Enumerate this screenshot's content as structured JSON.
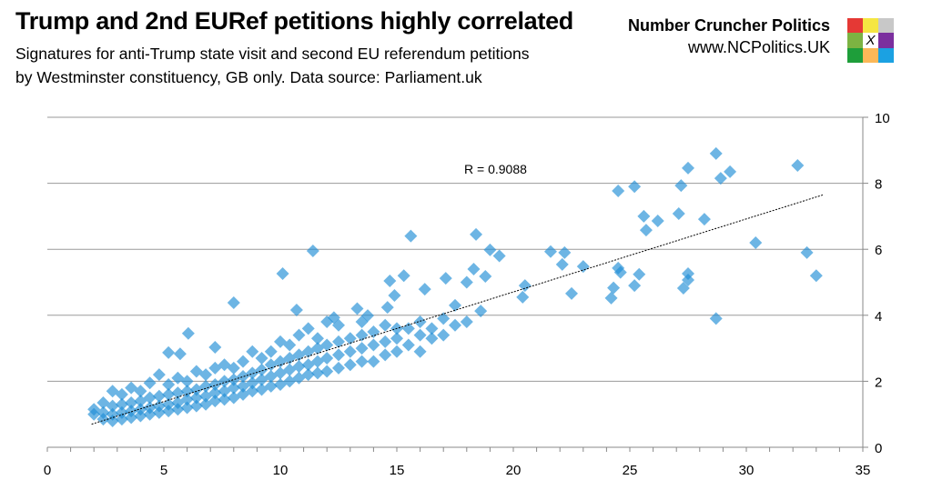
{
  "header": {
    "title": "Trump and 2nd EURef petitions highly correlated",
    "subtitle_line1": "Signatures for anti-Trump state visit and second EU referendum petitions",
    "subtitle_line2": "by Westminster constituency, GB only. Data source: Parliament.uk",
    "brand": "Number Cruncher Politics",
    "url": "www.NCPolitics.UK",
    "logo_colors": [
      "#e53935",
      "#f5e642",
      "#c8c8c8",
      "#7cb342",
      "#ffffff",
      "#7b2f9e",
      "#1e9e3a",
      "#fbb858",
      "#1ba1e2"
    ],
    "logo_mark": "X"
  },
  "chart_data": {
    "type": "scatter",
    "title": "",
    "xlabel": "",
    "ylabel": "",
    "xlim": [
      0,
      35
    ],
    "ylim": [
      0,
      10
    ],
    "x_ticks": [
      "0",
      "5",
      "10",
      "15",
      "20",
      "25",
      "30",
      "35"
    ],
    "y_ticks": [
      "0",
      "2",
      "4",
      "6",
      "8",
      "10"
    ],
    "y_axis_side": "right",
    "grid": "horizontal",
    "marker": "diamond",
    "color": "#1f8dd6",
    "annotation": "R = 0.9088",
    "trendline": {
      "x": [
        1.9,
        33.3
      ],
      "y": [
        0.7,
        7.65
      ],
      "style": "dotted",
      "color": "#000000"
    },
    "points": [
      [
        2.0,
        1.15
      ],
      [
        2.0,
        1.0
      ],
      [
        2.4,
        0.85
      ],
      [
        2.4,
        1.05
      ],
      [
        2.4,
        1.35
      ],
      [
        2.8,
        0.8
      ],
      [
        2.8,
        1.0
      ],
      [
        2.8,
        1.25
      ],
      [
        2.8,
        1.7
      ],
      [
        3.2,
        0.85
      ],
      [
        3.2,
        1.05
      ],
      [
        3.2,
        1.3
      ],
      [
        3.2,
        1.6
      ],
      [
        3.6,
        0.9
      ],
      [
        3.6,
        1.1
      ],
      [
        3.6,
        1.35
      ],
      [
        3.6,
        1.8
      ],
      [
        4.0,
        0.95
      ],
      [
        4.0,
        1.15
      ],
      [
        4.0,
        1.4
      ],
      [
        4.0,
        1.7
      ],
      [
        4.4,
        1.0
      ],
      [
        4.4,
        1.2
      ],
      [
        4.4,
        1.5
      ],
      [
        4.4,
        1.95
      ],
      [
        4.8,
        1.05
      ],
      [
        4.8,
        1.25
      ],
      [
        4.8,
        1.55
      ],
      [
        4.8,
        2.2
      ],
      [
        5.2,
        1.1
      ],
      [
        5.2,
        1.3
      ],
      [
        5.2,
        1.6
      ],
      [
        5.2,
        1.9
      ],
      [
        5.6,
        1.15
      ],
      [
        5.6,
        1.35
      ],
      [
        5.6,
        1.65
      ],
      [
        5.6,
        2.1
      ],
      [
        6.0,
        1.2
      ],
      [
        6.0,
        1.45
      ],
      [
        6.0,
        1.7
      ],
      [
        6.0,
        2.0
      ],
      [
        6.4,
        1.25
      ],
      [
        6.4,
        1.5
      ],
      [
        6.4,
        1.75
      ],
      [
        6.4,
        2.3
      ],
      [
        6.8,
        1.3
      ],
      [
        6.8,
        1.55
      ],
      [
        6.8,
        1.85
      ],
      [
        6.8,
        2.2
      ],
      [
        7.2,
        1.4
      ],
      [
        7.2,
        1.65
      ],
      [
        7.2,
        1.9
      ],
      [
        7.2,
        2.4
      ],
      [
        7.6,
        1.45
      ],
      [
        7.6,
        1.7
      ],
      [
        7.6,
        2.0
      ],
      [
        7.6,
        2.5
      ],
      [
        8.0,
        1.5
      ],
      [
        8.0,
        1.8
      ],
      [
        8.0,
        2.05
      ],
      [
        8.0,
        2.4
      ],
      [
        8.4,
        1.6
      ],
      [
        8.4,
        1.85
      ],
      [
        8.4,
        2.15
      ],
      [
        8.4,
        2.6
      ],
      [
        8.8,
        1.7
      ],
      [
        8.8,
        1.95
      ],
      [
        8.8,
        2.25
      ],
      [
        8.8,
        2.9
      ],
      [
        9.2,
        1.75
      ],
      [
        9.2,
        2.05
      ],
      [
        9.2,
        2.35
      ],
      [
        9.2,
        2.7
      ],
      [
        9.6,
        1.85
      ],
      [
        9.6,
        2.15
      ],
      [
        9.6,
        2.5
      ],
      [
        9.6,
        2.9
      ],
      [
        10.0,
        1.9
      ],
      [
        10.0,
        2.25
      ],
      [
        10.0,
        2.6
      ],
      [
        10.0,
        3.2
      ],
      [
        10.4,
        2.0
      ],
      [
        10.4,
        2.35
      ],
      [
        10.4,
        2.7
      ],
      [
        10.4,
        3.1
      ],
      [
        10.8,
        2.1
      ],
      [
        10.8,
        2.45
      ],
      [
        10.8,
        2.8
      ],
      [
        10.8,
        3.4
      ],
      [
        11.2,
        2.2
      ],
      [
        11.2,
        2.5
      ],
      [
        11.2,
        2.9
      ],
      [
        11.2,
        3.6
      ],
      [
        11.6,
        2.25
      ],
      [
        11.6,
        2.6
      ],
      [
        11.6,
        3.0
      ],
      [
        11.6,
        3.3
      ],
      [
        12.0,
        2.3
      ],
      [
        12.0,
        2.7
      ],
      [
        12.0,
        3.1
      ],
      [
        12.0,
        3.8
      ],
      [
        12.5,
        2.4
      ],
      [
        12.5,
        2.8
      ],
      [
        12.5,
        3.2
      ],
      [
        12.5,
        3.7
      ],
      [
        13.0,
        2.5
      ],
      [
        13.0,
        2.9
      ],
      [
        13.0,
        3.3
      ],
      [
        13.5,
        2.6
      ],
      [
        13.5,
        3.0
      ],
      [
        13.5,
        3.4
      ],
      [
        13.5,
        3.8
      ],
      [
        14.0,
        2.6
      ],
      [
        14.0,
        3.1
      ],
      [
        14.0,
        3.5
      ],
      [
        14.5,
        2.8
      ],
      [
        14.5,
        3.2
      ],
      [
        14.5,
        3.7
      ],
      [
        15.0,
        2.9
      ],
      [
        15.0,
        3.3
      ],
      [
        15.0,
        3.6
      ],
      [
        15.5,
        3.1
      ],
      [
        15.5,
        3.6
      ],
      [
        16.0,
        2.9
      ],
      [
        16.0,
        3.4
      ],
      [
        16.0,
        3.8
      ],
      [
        16.5,
        3.3
      ],
      [
        16.5,
        3.6
      ],
      [
        17.0,
        3.4
      ],
      [
        17.0,
        3.9
      ],
      [
        17.5,
        3.7
      ],
      [
        17.5,
        4.3
      ],
      [
        18.0,
        3.8
      ],
      [
        11.4,
        5.95
      ],
      [
        10.1,
        5.26
      ],
      [
        8.0,
        4.38
      ],
      [
        15.6,
        6.4
      ],
      [
        6.05,
        3.45
      ],
      [
        10.7,
        4.16
      ],
      [
        14.7,
        5.04
      ],
      [
        15.3,
        5.2
      ],
      [
        16.2,
        4.79
      ],
      [
        17.1,
        5.12
      ],
      [
        14.9,
        4.6
      ],
      [
        14.6,
        4.24
      ],
      [
        13.3,
        4.2
      ],
      [
        13.75,
        3.99
      ],
      [
        12.3,
        3.93
      ],
      [
        7.2,
        3.03
      ],
      [
        5.2,
        2.87
      ],
      [
        5.7,
        2.83
      ],
      [
        18.4,
        6.45
      ],
      [
        19.0,
        5.98
      ],
      [
        19.4,
        5.8
      ],
      [
        18.3,
        5.4
      ],
      [
        18.8,
        5.18
      ],
      [
        18.0,
        5.0
      ],
      [
        18.6,
        4.13
      ],
      [
        20.5,
        4.9
      ],
      [
        20.4,
        4.55
      ],
      [
        22.2,
        5.9
      ],
      [
        21.6,
        5.93
      ],
      [
        22.1,
        5.54
      ],
      [
        23.0,
        5.48
      ],
      [
        22.5,
        4.66
      ],
      [
        24.5,
        5.43
      ],
      [
        24.6,
        5.3
      ],
      [
        24.3,
        4.83
      ],
      [
        24.2,
        4.52
      ],
      [
        25.4,
        5.24
      ],
      [
        25.2,
        4.9
      ],
      [
        27.5,
        5.26
      ],
      [
        27.5,
        5.07
      ],
      [
        27.3,
        4.82
      ],
      [
        28.7,
        3.9
      ],
      [
        30.4,
        6.2
      ],
      [
        32.6,
        5.9
      ],
      [
        33.0,
        5.2
      ],
      [
        25.6,
        7.0
      ],
      [
        26.2,
        6.86
      ],
      [
        25.7,
        6.58
      ],
      [
        27.1,
        7.08
      ],
      [
        28.2,
        6.91
      ],
      [
        24.5,
        7.77
      ],
      [
        25.2,
        7.9
      ],
      [
        27.2,
        7.93
      ],
      [
        28.9,
        8.15
      ],
      [
        29.3,
        8.35
      ],
      [
        27.5,
        8.46
      ],
      [
        32.2,
        8.54
      ],
      [
        28.7,
        8.9
      ]
    ]
  }
}
